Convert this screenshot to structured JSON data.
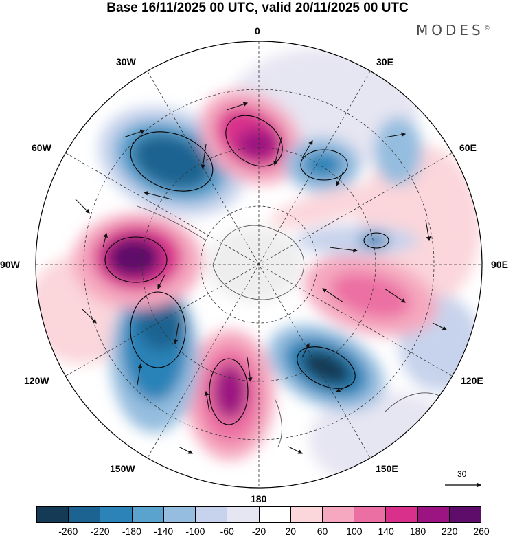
{
  "title": "Base 16/11/2025 00 UTC, valid 20/11/2025 00 UTC",
  "logo": "MODES",
  "logo_mark": "©",
  "longitudes": {
    "l0": "0",
    "l30e": "30E",
    "l60e": "60E",
    "l90e": "90E",
    "l120e": "120E",
    "l150e": "150E",
    "l180": "180",
    "l150w": "150W",
    "l120w": "120W",
    "l90w": "90W",
    "l60w": "60W",
    "l30w": "30W"
  },
  "reference_vector": "30",
  "colorbar": {
    "labels": [
      "-260",
      "-220",
      "-180",
      "-140",
      "-100",
      "-60",
      "-20",
      "20",
      "60",
      "100",
      "140",
      "180",
      "220",
      "260"
    ],
    "colors": [
      "#153a55",
      "#1c6391",
      "#2c83b8",
      "#5aa3cf",
      "#95bddf",
      "#c7d3ec",
      "#e6e5f2",
      "#ffffff",
      "#fbd6db",
      "#f5a8bf",
      "#ec6fa3",
      "#d9308c",
      "#9c1481",
      "#5e0d6b"
    ]
  }
}
